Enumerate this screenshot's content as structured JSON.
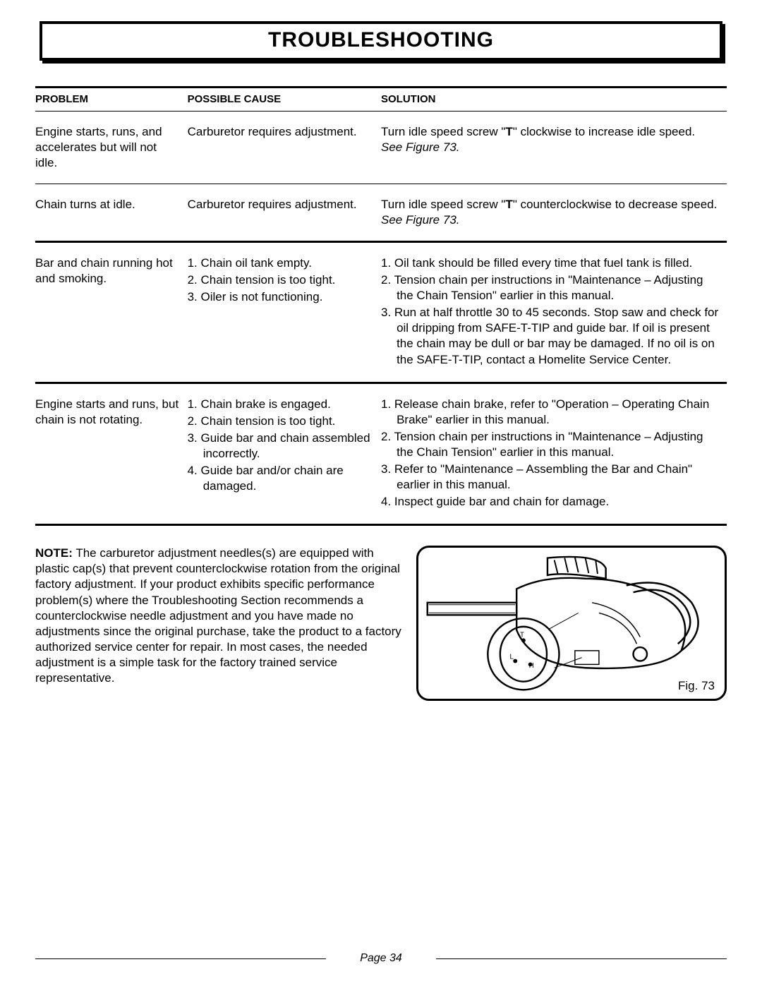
{
  "title": "TROUBLESHOOTING",
  "headers": {
    "problem": "PROBLEM",
    "cause": "POSSIBLE CAUSE",
    "solution": "SOLUTION"
  },
  "rows": [
    {
      "problem": "Engine starts, runs, and accelerates but will not idle.",
      "cause_plain": "Carburetor requires adjustment.",
      "solution_html": "Turn idle speed screw \"<b>T</b>\" clockwise to increase idle speed. <i>See Figure 73.</i>",
      "sep": "thin"
    },
    {
      "problem": "Chain turns at idle.",
      "cause_plain": "Carburetor requires adjustment.",
      "solution_html": "Turn idle speed screw \"<b>T</b>\" counterclockwise to decrease speed. <i>See Figure 73.</i>",
      "sep": "thick"
    },
    {
      "problem": "Bar and chain running hot and smoking.",
      "cause_list": [
        "1. Chain oil tank empty.",
        "2. Chain tension is too tight.",
        "3. Oiler is not functioning."
      ],
      "solution_list": [
        "1. Oil tank should be filled every time that fuel tank is filled.",
        "2. Tension chain per instructions in \"Maintenance – Adjusting the Chain Tension\" earlier in this manual.",
        "3. Run at half throttle 30 to 45 seconds.  Stop saw and check for oil dripping from SAFE-T-TIP and guide bar. If oil is present the chain may be dull or bar may be damaged. If no oil is on the SAFE-T-TIP, contact a Homelite Service Center."
      ],
      "sep": "thick"
    },
    {
      "problem": "Engine starts and runs, but chain is not rotating.",
      "cause_list": [
        "1. Chain brake is engaged.",
        "2. Chain tension is too tight.",
        "3. Guide bar and chain assembled incorrectly.",
        "4. Guide bar and/or chain are damaged."
      ],
      "solution_list": [
        "1. Release chain brake, refer to \"Operation – Operating Chain Brake\" earlier in this manual.",
        "2. Tension chain per instructions in \"Maintenance – Adjusting the Chain Tension\" earlier in this manual.",
        "3. Refer to \"Maintenance – Assembling the Bar and Chain\" earlier in this manual.",
        "4. Inspect guide bar and chain for damage."
      ],
      "sep": "thick"
    }
  ],
  "note": {
    "label": "NOTE:",
    "text": "The carburetor adjustment needles(s) are equipped with plastic cap(s) that prevent counterclockwise rotation from the original factory adjustment. If your product exhibits specific performance problem(s) where the Troubleshooting Section recommends a counterclockwise needle adjustment and you have made no adjustments since the original purchase, take the product to a factory authorized service center for repair. In most cases, the needed adjustment is a simple task for the factory trained service representative."
  },
  "figure_caption": "Fig. 73",
  "page_label": "Page 34",
  "colors": {
    "text": "#000000",
    "background": "#ffffff",
    "border": "#000000"
  },
  "fonts": {
    "body_size_pt": 13,
    "title_size_pt": 22,
    "header_size_pt": 11
  }
}
